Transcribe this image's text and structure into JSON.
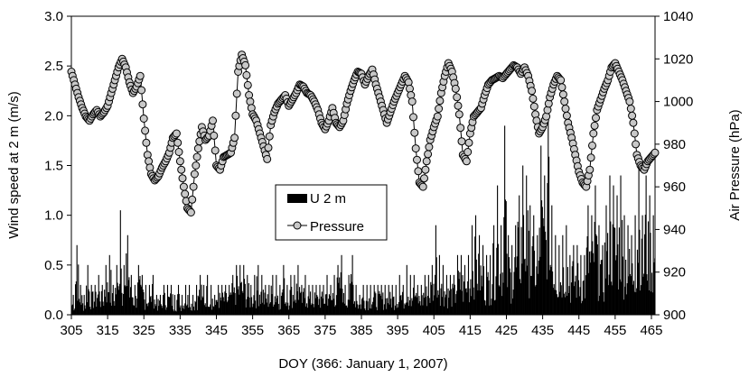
{
  "chart_data": {
    "type": "bar+line",
    "xlabel": "DOY (366: January 1, 2007)",
    "ylabel_left": "Wind speed at 2 m (m/s)",
    "ylabel_right": "Air Pressure (hPa)",
    "xlim": [
      305,
      466
    ],
    "ylim_left": [
      0,
      3.0
    ],
    "ylim_right": [
      900,
      1040
    ],
    "x_ticks": [
      "305",
      "315",
      "325",
      "335",
      "345",
      "355",
      "365",
      "375",
      "385",
      "395",
      "405",
      "415",
      "425",
      "435",
      "445",
      "455",
      "465"
    ],
    "y_left_ticks": [
      "0.0",
      "0.5",
      "1.0",
      "1.5",
      "2.0",
      "2.5",
      "3.0"
    ],
    "y_right_ticks": [
      "900",
      "920",
      "940",
      "960",
      "980",
      "1000",
      "1020",
      "1040"
    ],
    "legend": {
      "position": "center-left",
      "items": [
        "U 2 m",
        "Pressure"
      ]
    },
    "grid": false,
    "series": [
      {
        "name": "Pressure",
        "axis": "right",
        "type": "line-markers",
        "marker_color": "#c8c8c8",
        "x": [
          305,
          306,
          307,
          308,
          309,
          310,
          311,
          312,
          313,
          314,
          315,
          316,
          317,
          318,
          319,
          320,
          321,
          322,
          323,
          324,
          325,
          326,
          327,
          328,
          329,
          330,
          331,
          332,
          333,
          334,
          335,
          336,
          337,
          338,
          339,
          340,
          341,
          342,
          343,
          344,
          345,
          346,
          347,
          348,
          349,
          350,
          351,
          352,
          353,
          354,
          355,
          356,
          357,
          358,
          359,
          360,
          361,
          362,
          363,
          364,
          365,
          366,
          367,
          368,
          369,
          370,
          371,
          372,
          373,
          374,
          375,
          376,
          377,
          378,
          379,
          380,
          381,
          382,
          383,
          384,
          385,
          386,
          387,
          388,
          389,
          390,
          391,
          392,
          393,
          394,
          395,
          396,
          397,
          398,
          399,
          400,
          401,
          402,
          403,
          404,
          405,
          406,
          407,
          408,
          409,
          410,
          411,
          412,
          413,
          414,
          415,
          416,
          417,
          418,
          419,
          420,
          421,
          422,
          423,
          424,
          425,
          426,
          427,
          428,
          429,
          430,
          431,
          432,
          433,
          434,
          435,
          436,
          437,
          438,
          439,
          440,
          441,
          442,
          443,
          444,
          445,
          446,
          447,
          448,
          449,
          450,
          451,
          452,
          453,
          454,
          455,
          456,
          457,
          458,
          459,
          460,
          461,
          462,
          463,
          464,
          465,
          466
        ],
        "y": [
          1014,
          1008,
          1002,
          997,
          993,
          991,
          994,
          996,
          993,
          995,
          998,
          1004,
          1010,
          1016,
          1020,
          1016,
          1009,
          1004,
          1007,
          1012,
          992,
          975,
          966,
          963,
          965,
          969,
          972,
          976,
          983,
          985,
          972,
          960,
          950,
          948,
          966,
          978,
          988,
          982,
          984,
          991,
          970,
          968,
          974,
          975,
          976,
          983,
          1014,
          1022,
          1017,
          1003,
          994,
          991,
          985,
          979,
          973,
          989,
          995,
          999,
          1001,
          1003,
          998,
          1001,
          1004,
          1008,
          1007,
          1004,
          1003,
          1000,
          996,
          990,
          987,
          991,
          997,
          990,
          988,
          991,
          999,
          1005,
          1010,
          1014,
          1013,
          1008,
          1012,
          1015,
          1008,
          1002,
          996,
          990,
          995,
          1000,
          1004,
          1008,
          1012,
          1009,
          1000,
          978,
          962,
          960,
          972,
          982,
          988,
          993,
          1004,
          1012,
          1018,
          1014,
          1006,
          994,
          975,
          972,
          985,
          993,
          995,
          997,
          1003,
          1008,
          1010,
          1011,
          1012,
          1011,
          1013,
          1015,
          1017,
          1016,
          1013,
          1016,
          1012,
          1005,
          994,
          985,
          988,
          993,
          1002,
          1008,
          1012,
          1010,
          1000,
          990,
          983,
          975,
          967,
          962,
          960,
          968,
          985,
          996,
          1001,
          1006,
          1010,
          1016,
          1018,
          1014,
          1010,
          1005,
          1000,
          990,
          975,
          970,
          968,
          972,
          974,
          976
        ]
      },
      {
        "name": "U 2 m",
        "axis": "left",
        "type": "bar",
        "color": "#000000",
        "note_profile_daily_max": [
          0.2,
          0.7,
          0.3,
          0.2,
          0.5,
          0.3,
          0.3,
          0.4,
          0.3,
          0.5,
          0.6,
          0.3,
          0.5,
          1.05,
          0.5,
          0.8,
          0.4,
          0.3,
          0.5,
          0.4,
          0.3,
          0.3,
          0.4,
          0.2,
          0.2,
          0.3,
          0.3,
          0.3,
          0.2,
          0.3,
          0.2,
          0.3,
          0.3,
          0.2,
          0.3,
          0.4,
          0.3,
          0.4,
          0.3,
          0.2,
          0.3,
          0.3,
          0.3,
          0.3,
          0.4,
          0.5,
          0.5,
          0.5,
          0.4,
          0.3,
          0.4,
          0.5,
          0.4,
          0.3,
          0.3,
          0.4,
          0.4,
          0.3,
          0.5,
          0.3,
          0.4,
          0.4,
          0.5,
          0.3,
          0.4,
          0.3,
          0.3,
          0.3,
          0.3,
          0.3,
          0.4,
          0.3,
          0.4,
          0.5,
          0.6,
          0.3,
          0.4,
          0.6,
          0.3,
          0.2,
          0.3,
          0.3,
          0.3,
          0.3,
          0.3,
          0.3,
          0.3,
          0.3,
          0.3,
          0.3,
          0.4,
          0.3,
          0.5,
          0.4,
          0.4,
          0.3,
          0.3,
          0.4,
          0.4,
          0.5,
          0.9,
          0.6,
          0.5,
          0.4,
          0.4,
          0.4,
          0.6,
          0.6,
          0.5,
          0.6,
          0.9,
          1.0,
          0.8,
          0.7,
          0.6,
          0.6,
          0.9,
          1.3,
          0.9,
          1.9,
          0.8,
          0.7,
          0.9,
          1.2,
          1.5,
          1.4,
          1.1,
          1.0,
          0.8,
          1.7,
          1.4,
          2.0,
          1.1,
          0.8,
          0.7,
          0.8,
          0.9,
          0.6,
          0.7,
          0.7,
          0.6,
          0.6,
          1.1,
          1.0,
          1.3,
          0.9,
          0.7,
          1.1,
          1.4,
          1.3,
          1.2,
          1.4,
          1.0,
          0.9,
          0.8,
          1.0,
          1.6,
          1.0,
          1.4,
          1.2,
          1.0
        ]
      }
    ]
  }
}
